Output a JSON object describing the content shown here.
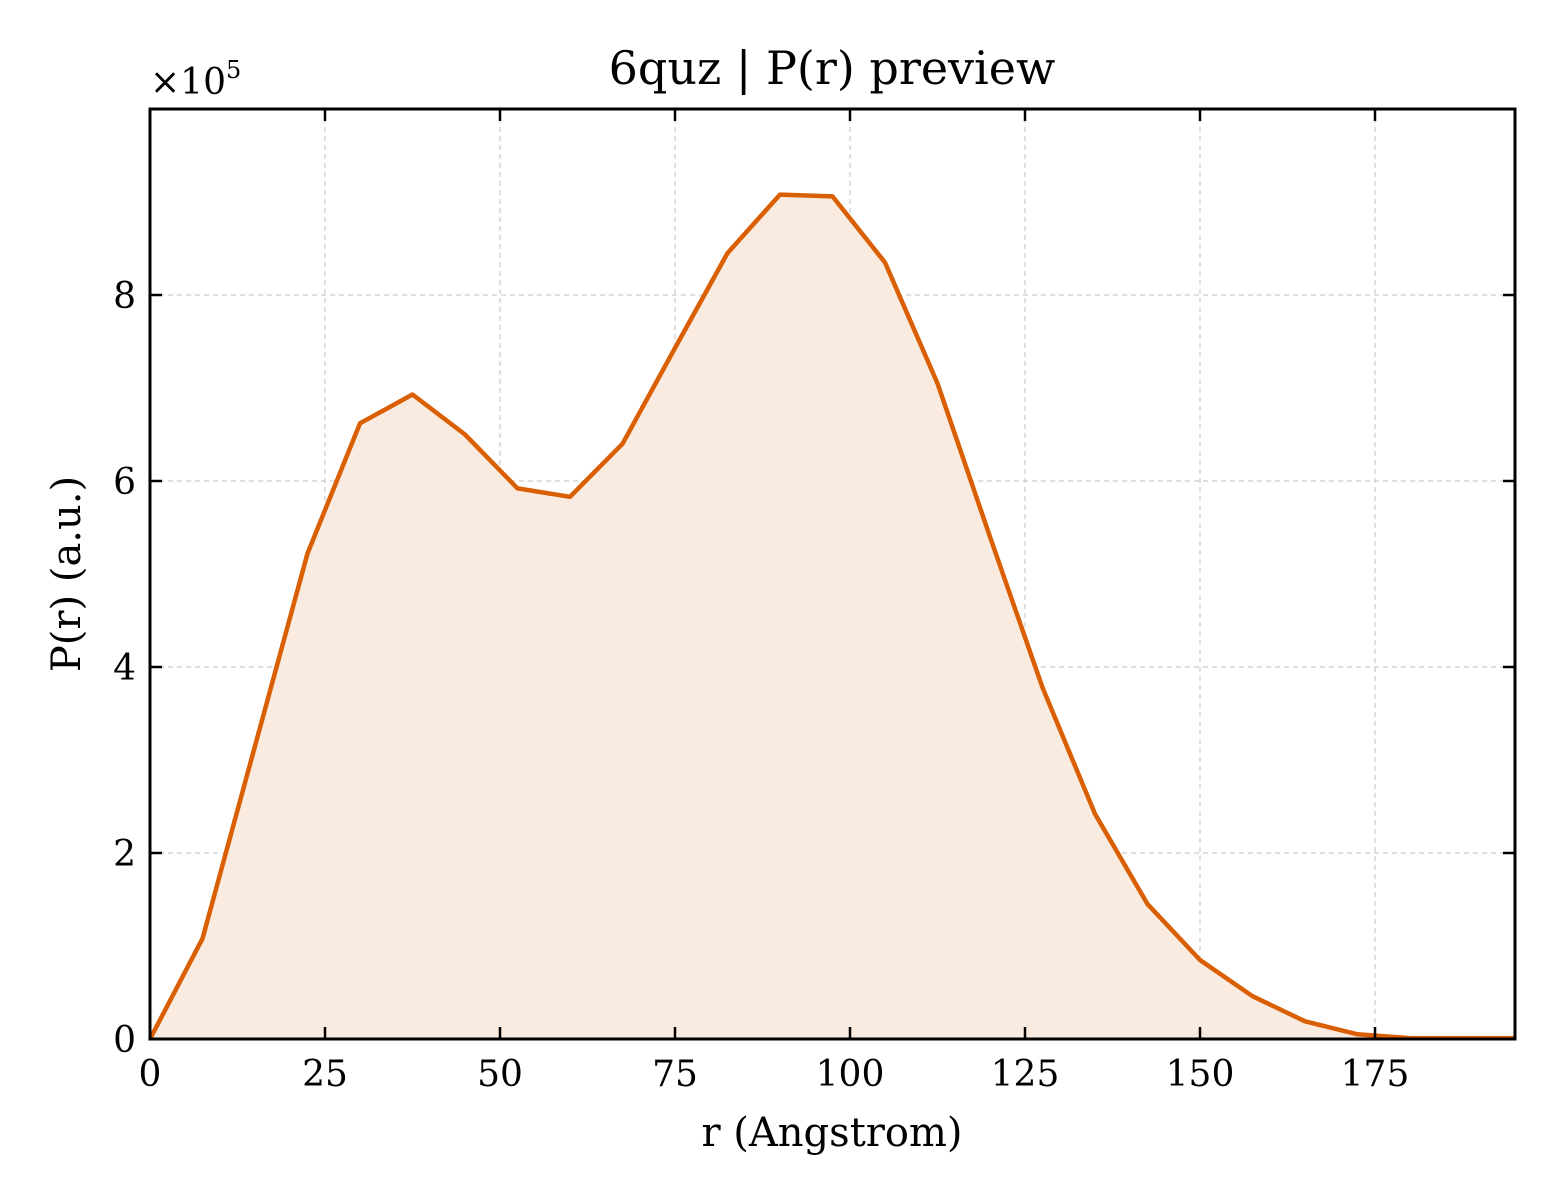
{
  "chart_data": {
    "type": "area",
    "title": "6quz | P(r) preview",
    "xlabel": "r (Angstrom)",
    "ylabel": "P(r) (a.u.)",
    "y_scale_prefix": "×10",
    "y_scale_exponent": "5",
    "y_multiplier": 100000,
    "xlim": [
      0,
      195
    ],
    "ylim": [
      0,
      10
    ],
    "x_ticks": [
      0,
      25,
      50,
      75,
      100,
      125,
      150,
      175
    ],
    "x_tick_labels": [
      "0",
      "25",
      "50",
      "75",
      "100",
      "125",
      "150",
      "175"
    ],
    "y_ticks": [
      0,
      2,
      4,
      6,
      8
    ],
    "y_tick_labels": [
      "0",
      "2",
      "4",
      "6",
      "8"
    ],
    "grid": true,
    "line_color": "#d95f02",
    "fill_color": "#f9ebe0",
    "series": [
      {
        "x": [
          0,
          7.5,
          15,
          22.5,
          30,
          37.5,
          45,
          52.5,
          60,
          67.5,
          75,
          82.5,
          90,
          97.5,
          105,
          112.5,
          120,
          127.5,
          135,
          142.5,
          150,
          157.5,
          165,
          172.5,
          180,
          187.5,
          195
        ],
        "values": [
          0,
          1.08,
          3.15,
          5.22,
          6.62,
          6.93,
          6.5,
          5.92,
          5.83,
          6.4,
          7.43,
          8.45,
          9.08,
          9.06,
          8.35,
          7.05,
          5.4,
          3.78,
          2.42,
          1.45,
          0.85,
          0.46,
          0.19,
          0.05,
          0.01,
          0.01,
          0.01
        ]
      }
    ]
  }
}
